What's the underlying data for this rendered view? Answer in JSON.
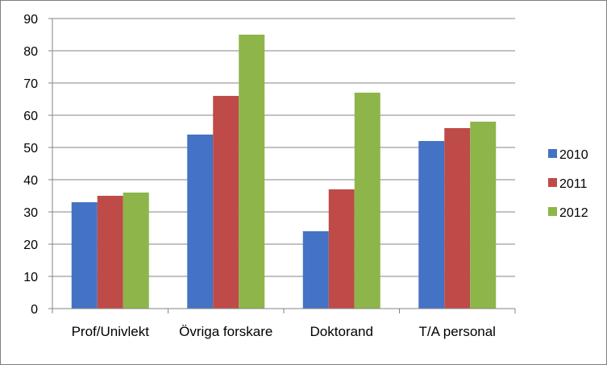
{
  "chart_data": {
    "type": "bar",
    "categories": [
      "Prof/Univlekt",
      "Övriga forskare",
      "Doktorand",
      "T/A personal"
    ],
    "series": [
      {
        "name": "2010",
        "color": "#4472C4",
        "values": [
          33,
          54,
          24,
          52
        ]
      },
      {
        "name": "2011",
        "color": "#BE4B48",
        "values": [
          35,
          66,
          37,
          56
        ]
      },
      {
        "name": "2012",
        "color": "#8DB54A",
        "values": [
          36,
          85,
          67,
          58
        ]
      }
    ],
    "ylim": [
      0,
      90
    ],
    "yticks": [
      0,
      10,
      20,
      30,
      40,
      50,
      60,
      70,
      80,
      90
    ],
    "grid": true,
    "legend_position": "right"
  }
}
